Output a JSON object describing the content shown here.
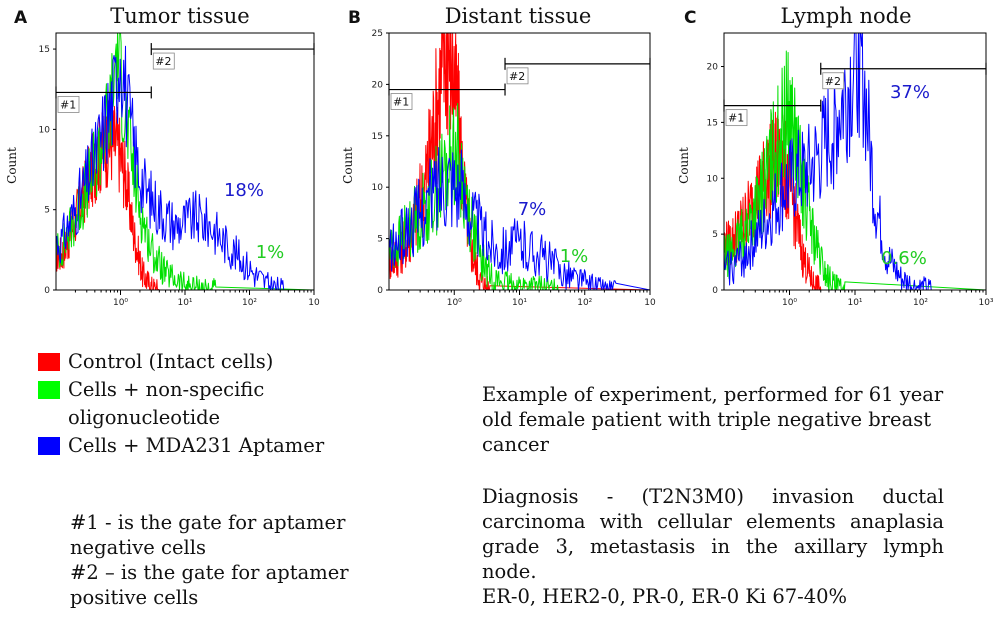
{
  "chart_data": [
    {
      "type": "histogram",
      "panel_letter": "A",
      "title": "Tumor tissue",
      "ylabel": "Count",
      "xscale": "log",
      "xlim": [
        0.1,
        1000
      ],
      "ylim": [
        0,
        16
      ],
      "yticks": [
        0,
        5,
        10,
        15
      ],
      "xtick_labels": [
        "10⁰",
        "10¹",
        "10²",
        "10"
      ],
      "gates": [
        {
          "label": "#1",
          "from": 0.1,
          "to": 3,
          "level": 12.3
        },
        {
          "label": "#2",
          "from": 3,
          "to": 1000,
          "level": 15
        }
      ],
      "series": [
        {
          "name": "Control (Intact cells)",
          "color": "#ff0000",
          "points": [
            [
              0.12,
              2.2
            ],
            [
              0.15,
              3
            ],
            [
              0.2,
              4.5
            ],
            [
              0.3,
              6.5
            ],
            [
              0.45,
              8.3
            ],
            [
              0.7,
              9.3
            ],
            [
              0.9,
              9
            ],
            [
              1.2,
              7
            ],
            [
              1.6,
              3.5
            ],
            [
              2.2,
              1
            ],
            [
              3,
              0.2
            ],
            [
              4,
              0
            ]
          ]
        },
        {
          "name": "Cells + non-specific oligonucleotide",
          "color": "#00e000",
          "points": [
            [
              0.12,
              2.5
            ],
            [
              0.2,
              4.5
            ],
            [
              0.35,
              7
            ],
            [
              0.55,
              9.5
            ],
            [
              0.75,
              12
            ],
            [
              0.9,
              16
            ],
            [
              1.1,
              12
            ],
            [
              1.5,
              8
            ],
            [
              2,
              5
            ],
            [
              3,
              2.5
            ],
            [
              5,
              1
            ],
            [
              10,
              0.3
            ],
            [
              20,
              0.1
            ],
            [
              30,
              0
            ]
          ]
        },
        {
          "name": "Cells + MDA231 Aptamer",
          "color": "#0000ff",
          "points": [
            [
              0.12,
              3
            ],
            [
              0.2,
              5
            ],
            [
              0.35,
              7.5
            ],
            [
              0.55,
              10
            ],
            [
              0.8,
              12
            ],
            [
              1.0,
              15.5
            ],
            [
              1.3,
              11
            ],
            [
              1.8,
              8
            ],
            [
              2.5,
              6
            ],
            [
              4,
              5
            ],
            [
              7,
              4
            ],
            [
              15,
              4.5
            ],
            [
              25,
              4
            ],
            [
              40,
              3
            ],
            [
              70,
              2
            ],
            [
              120,
              1
            ],
            [
              200,
              0.3
            ],
            [
              350,
              0
            ]
          ]
        }
      ],
      "annotations": [
        {
          "text": "18%",
          "color": "#1a1acc"
        },
        {
          "text": "1%",
          "color": "#22cc22"
        }
      ]
    },
    {
      "type": "histogram",
      "panel_letter": "B",
      "title": "Distant tissue",
      "ylabel": "Count",
      "xscale": "log",
      "xlim": [
        0.1,
        1000
      ],
      "ylim": [
        0,
        25
      ],
      "yticks": [
        0,
        5,
        10,
        15,
        20,
        25
      ],
      "xtick_labels": [
        "10⁰",
        "10¹",
        "10²",
        "10"
      ],
      "gates": [
        {
          "label": "#1",
          "from": 0.1,
          "to": 6,
          "level": 19.5
        },
        {
          "label": "#2",
          "from": 6,
          "to": 1000,
          "level": 22
        }
      ],
      "series": [
        {
          "name": "Control (Intact cells)",
          "color": "#ff0000",
          "points": [
            [
              0.12,
              3
            ],
            [
              0.2,
              5
            ],
            [
              0.35,
              10
            ],
            [
              0.55,
              18
            ],
            [
              0.75,
              24
            ],
            [
              0.9,
              23
            ],
            [
              1.1,
              18
            ],
            [
              1.4,
              10
            ],
            [
              1.8,
              4
            ],
            [
              2.5,
              1
            ],
            [
              3.5,
              0
            ]
          ]
        },
        {
          "name": "Cells + non-specific oligonucleotide",
          "color": "#00e000",
          "points": [
            [
              0.12,
              4
            ],
            [
              0.2,
              6
            ],
            [
              0.35,
              8
            ],
            [
              0.55,
              10
            ],
            [
              0.8,
              12
            ],
            [
              1.0,
              14
            ],
            [
              1.3,
              11
            ],
            [
              1.8,
              7
            ],
            [
              2.5,
              3
            ],
            [
              4,
              1
            ],
            [
              7,
              0.5
            ],
            [
              15,
              0.3
            ],
            [
              40,
              0
            ]
          ]
        },
        {
          "name": "Cells + MDA231 Aptamer",
          "color": "#0000ff",
          "points": [
            [
              0.12,
              4
            ],
            [
              0.2,
              6
            ],
            [
              0.35,
              8
            ],
            [
              0.55,
              10
            ],
            [
              0.8,
              11.5
            ],
            [
              1.0,
              11
            ],
            [
              1.4,
              9
            ],
            [
              2,
              7
            ],
            [
              3,
              5
            ],
            [
              5,
              4
            ],
            [
              10,
              4.5
            ],
            [
              20,
              3.5
            ],
            [
              40,
              2
            ],
            [
              80,
              1
            ],
            [
              150,
              0.3
            ],
            [
              300,
              0
            ]
          ]
        }
      ],
      "annotations": [
        {
          "text": "7%",
          "color": "#1a1acc"
        },
        {
          "text": "1%",
          "color": "#22cc22"
        }
      ]
    },
    {
      "type": "histogram",
      "panel_letter": "C",
      "title": "Lymph node",
      "ylabel": "Count",
      "xscale": "log",
      "xlim": [
        0.1,
        1000
      ],
      "ylim": [
        0,
        23
      ],
      "yticks": [
        0,
        5,
        10,
        15,
        20
      ],
      "xtick_labels": [
        "10⁰",
        "10¹",
        "10²",
        "10³"
      ],
      "gates": [
        {
          "label": "#1",
          "from": 0.1,
          "to": 3,
          "level": 16.5
        },
        {
          "label": "#2",
          "from": 3,
          "to": 1000,
          "level": 19.8
        }
      ],
      "series": [
        {
          "name": "Control (Intact cells)",
          "color": "#ff0000",
          "points": [
            [
              0.12,
              4
            ],
            [
              0.2,
              6
            ],
            [
              0.35,
              9
            ],
            [
              0.55,
              11
            ],
            [
              0.75,
              12
            ],
            [
              0.95,
              10
            ],
            [
              1.2,
              7
            ],
            [
              1.6,
              3
            ],
            [
              2.2,
              0.8
            ],
            [
              3,
              0
            ]
          ]
        },
        {
          "name": "Cells + non-specific oligonucleotide",
          "color": "#00e000",
          "points": [
            [
              0.12,
              3
            ],
            [
              0.2,
              5
            ],
            [
              0.35,
              8
            ],
            [
              0.55,
              12
            ],
            [
              0.85,
              15
            ],
            [
              1.0,
              16.5
            ],
            [
              1.3,
              12
            ],
            [
              1.8,
              8
            ],
            [
              2.5,
              4
            ],
            [
              3.5,
              1.5
            ],
            [
              5,
              0.3
            ],
            [
              7,
              0
            ]
          ]
        },
        {
          "name": "Cells + MDA231 Aptamer",
          "color": "#0000ff",
          "points": [
            [
              0.12,
              2
            ],
            [
              0.2,
              3
            ],
            [
              0.35,
              5
            ],
            [
              0.55,
              7
            ],
            [
              0.85,
              9
            ],
            [
              1.3,
              10
            ],
            [
              2,
              10.5
            ],
            [
              3,
              12
            ],
            [
              5,
              15
            ],
            [
              8,
              18
            ],
            [
              11,
              21.5
            ],
            [
              13,
              20
            ],
            [
              16,
              14
            ],
            [
              20,
              8
            ],
            [
              30,
              3
            ],
            [
              50,
              1
            ],
            [
              80,
              0.3
            ],
            [
              150,
              0
            ]
          ]
        }
      ],
      "annotations": [
        {
          "text": "37%",
          "color": "#1a1acc"
        },
        {
          "text": "0.6%",
          "color": "#22cc22"
        }
      ]
    }
  ],
  "legend": [
    {
      "color": "#ff0000",
      "label": "Control (Intact cells)"
    },
    {
      "color": "#00ff00",
      "label": "Cells + non-specific oligonucleotide"
    },
    {
      "color": "#0000ff",
      "label": "Cells + MDA231 Aptamer"
    }
  ],
  "gate_notes": {
    "gate1": "#1 - is the gate for aptamer negative cells",
    "gate2": "#2 – is the gate for aptamer positive cells"
  },
  "notes": {
    "experiment": "Example of experiment, performed for 61 year old female patient with triple negative breast cancer",
    "diagnosis": "Diagnosis - (T2N3M0) invasion ductal carcinoma with cellular elements anaplasia grade 3, metastasis in the axillary lymph node.",
    "markers": "ER-0, HER2-0, PR-0, ER-0 Ki 67-40%"
  }
}
